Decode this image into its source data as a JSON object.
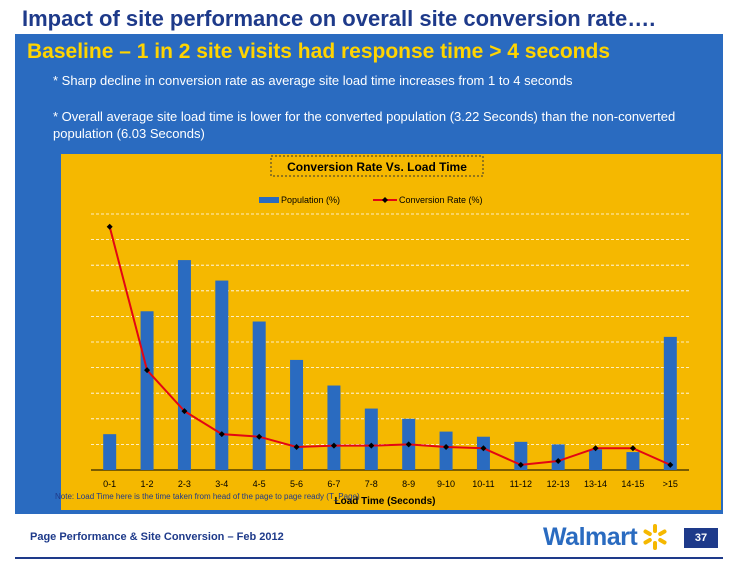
{
  "slide": {
    "title": "Impact of site performance on overall site conversion rate….",
    "subtitle": "Baseline – 1 in 2 site visits had response time > 4 seconds",
    "bullets": [
      "* Sharp decline in conversion rate as average site load time increases from 1 to 4 seconds",
      "* Overall average site load time is lower for the converted population (3.22 Seconds) than the non-converted population (6.03 Seconds)"
    ],
    "footer": "Page Performance & Site Conversion – Feb 2012",
    "brand": "Walmart",
    "page_number": "37"
  },
  "chart_data": {
    "type": "bar",
    "title": "Conversion Rate Vs. Load Time",
    "xlabel": "Load Time (Seconds)",
    "ylabel": "",
    "categories": [
      "0-1",
      "1-2",
      "2-3",
      "3-4",
      "4-5",
      "5-6",
      "6-7",
      "7-8",
      "8-9",
      "9-10",
      "10-11",
      "11-12",
      "12-13",
      "13-14",
      "14-15",
      ">15"
    ],
    "series": [
      {
        "name": "Population (%)",
        "type": "bar",
        "color": "#2a6bc0",
        "values": [
          14,
          62,
          82,
          74,
          58,
          43,
          33,
          24,
          20,
          15,
          13,
          11,
          10,
          8,
          7,
          52
        ]
      },
      {
        "name": "Conversion Rate (%)",
        "type": "line",
        "color": "#e30613",
        "values": [
          95,
          39,
          23,
          14,
          13,
          9,
          9.5,
          9.5,
          10,
          9,
          8.5,
          2,
          3.5,
          8.5,
          8.5,
          2
        ]
      }
    ],
    "ylim": [
      0,
      100
    ],
    "grid": true,
    "legend": "top",
    "note": "Note: Load Time here is the time taken from head of the page to page ready (T_Page)"
  }
}
